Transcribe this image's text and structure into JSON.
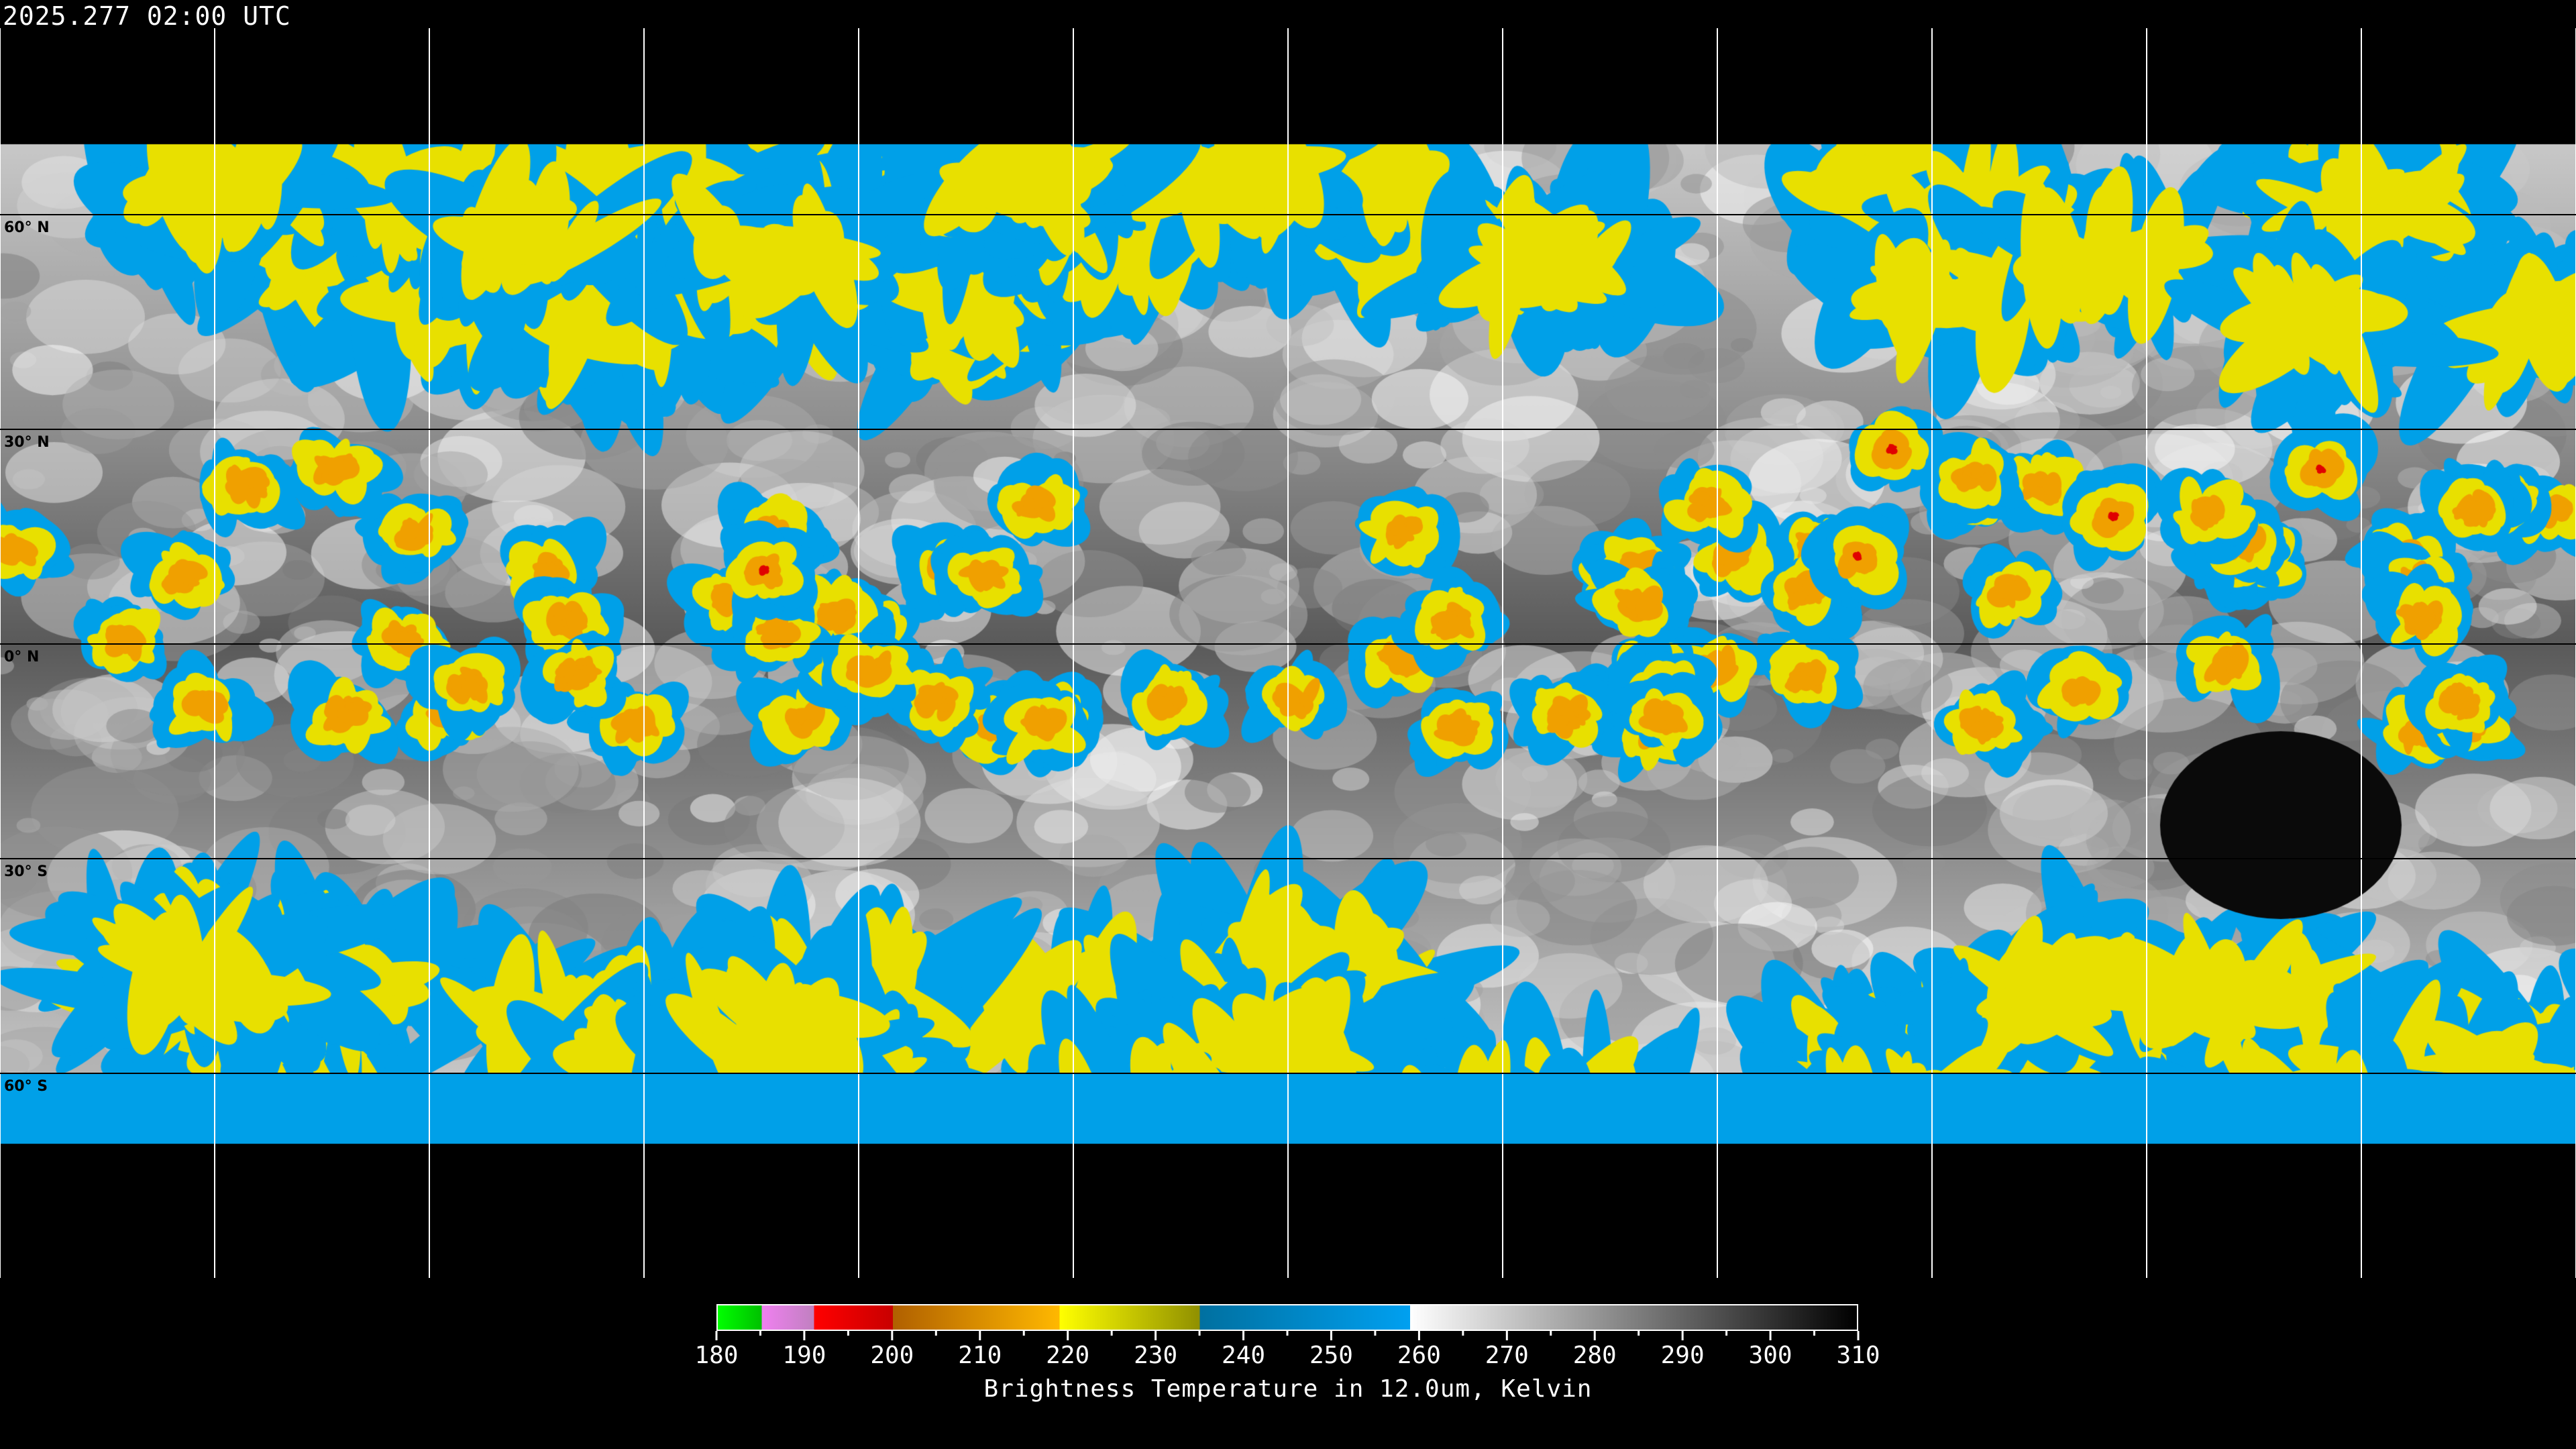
{
  "title": "2025.277 02:00 UTC",
  "map": {
    "projection": "equirectangular",
    "lat_labels": [
      "60° N",
      "30° N",
      "0° N",
      "30° S",
      "60° S"
    ],
    "lat_lines": [
      60,
      30,
      0,
      -30,
      -60
    ],
    "lon_grid_step_deg": 30,
    "grid_color": "#ffffff",
    "coastline_color": "#000000"
  },
  "colorbar": {
    "min": 180,
    "max": 310,
    "tick_step": 5,
    "label_step": 10,
    "labels": [
      "180",
      "190",
      "200",
      "210",
      "220",
      "230",
      "240",
      "250",
      "260",
      "270",
      "280",
      "290",
      "300",
      "310"
    ],
    "title": "Brightness Temperature in 12.0um, Kelvin",
    "segments": [
      {
        "from": 180,
        "to": 185,
        "start": "#00ff00",
        "end": "#00c000"
      },
      {
        "from": 185,
        "to": 191,
        "start": "#f080f0",
        "end": "#c080c0"
      },
      {
        "from": 191,
        "to": 200,
        "start": "#ff0000",
        "end": "#c80000"
      },
      {
        "from": 200,
        "to": 219,
        "start": "#b06000",
        "end": "#ffb800"
      },
      {
        "from": 219,
        "to": 235,
        "start": "#ffff00",
        "end": "#909000"
      },
      {
        "from": 235,
        "to": 259,
        "start": "#0070a0",
        "end": "#00a0f0"
      },
      {
        "from": 259,
        "to": 310,
        "start": "#ffffff",
        "end": "#000000"
      }
    ]
  }
}
